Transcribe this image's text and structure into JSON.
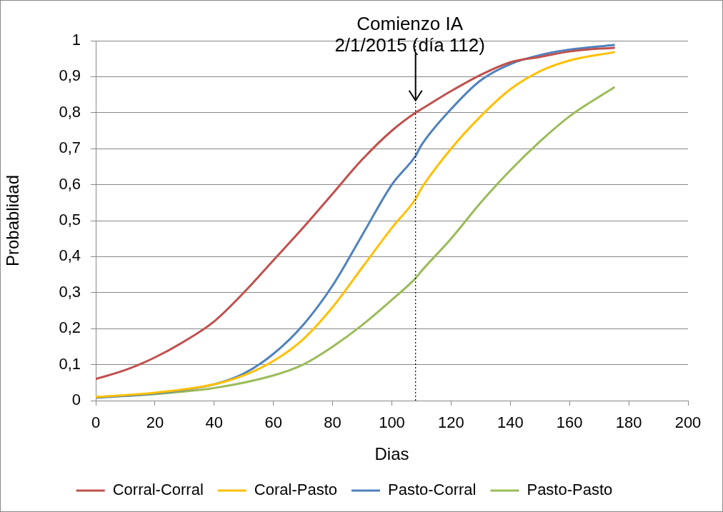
{
  "chart_data": {
    "type": "line",
    "xlabel": "Dias",
    "ylabel": "Probablidad",
    "xlim": [
      0,
      200
    ],
    "xticks": [
      0,
      20,
      40,
      60,
      80,
      100,
      120,
      140,
      160,
      180,
      200
    ],
    "ylim": [
      0,
      1
    ],
    "yticks": [
      0,
      {
        "value": 0.1,
        "label": "0,1"
      },
      {
        "value": 0.2,
        "label": "0,2"
      },
      {
        "value": 0.3,
        "label": "0,3"
      },
      {
        "value": 0.4,
        "label": "0,4"
      },
      {
        "value": 0.5,
        "label": "0,5"
      },
      {
        "value": 0.6,
        "label": "0,6"
      },
      {
        "value": 0.7,
        "label": "0,7"
      },
      {
        "value": 0.8,
        "label": "0,8"
      },
      {
        "value": 0.9,
        "label": "0,9"
      },
      1
    ],
    "grid": "y",
    "legend": "bottom",
    "marker": "none",
    "line_style": "solid",
    "ref_lines": [
      {
        "axis": "x",
        "value": 108,
        "color": "#000000",
        "line_style": "dotted"
      }
    ],
    "annotations": [
      {
        "text": "Comienzo IA\n2/1/2015 (día 112)",
        "x": 108,
        "y": 0.83
      }
    ],
    "series": [
      {
        "name": "Corral-Corral",
        "color": "#c0504d",
        "x": [
          0,
          10,
          20,
          30,
          40,
          50,
          60,
          70,
          80,
          90,
          100,
          108,
          110,
          120,
          130,
          140,
          150,
          160,
          170,
          175
        ],
        "values": [
          0.06,
          0.085,
          0.12,
          0.165,
          0.22,
          0.3,
          0.39,
          0.48,
          0.575,
          0.67,
          0.75,
          0.8,
          0.81,
          0.86,
          0.905,
          0.94,
          0.955,
          0.97,
          0.978,
          0.98
        ]
      },
      {
        "name": "Coral-Pasto",
        "color": "#ffc000",
        "x": [
          0,
          20,
          40,
          50,
          60,
          70,
          80,
          90,
          100,
          108,
          110,
          120,
          130,
          140,
          150,
          160,
          175
        ],
        "values": [
          0.01,
          0.022,
          0.045,
          0.07,
          0.11,
          0.17,
          0.26,
          0.37,
          0.48,
          0.56,
          0.59,
          0.7,
          0.79,
          0.865,
          0.915,
          0.945,
          0.968
        ]
      },
      {
        "name": "Pasto-Corral",
        "color": "#4f81bd",
        "x": [
          0,
          20,
          40,
          50,
          60,
          70,
          80,
          90,
          100,
          108,
          110,
          120,
          130,
          140,
          150,
          160,
          175
        ],
        "values": [
          0.008,
          0.02,
          0.045,
          0.075,
          0.13,
          0.21,
          0.32,
          0.46,
          0.6,
          0.68,
          0.71,
          0.81,
          0.89,
          0.935,
          0.96,
          0.975,
          0.988
        ]
      },
      {
        "name": "Pasto-Pasto",
        "color": "#9bbb59",
        "x": [
          0,
          20,
          40,
          60,
          70,
          80,
          90,
          100,
          108,
          110,
          120,
          130,
          140,
          150,
          160,
          175
        ],
        "values": [
          0.01,
          0.018,
          0.035,
          0.07,
          0.1,
          0.15,
          0.21,
          0.28,
          0.34,
          0.36,
          0.45,
          0.55,
          0.64,
          0.72,
          0.79,
          0.87
        ]
      }
    ]
  }
}
